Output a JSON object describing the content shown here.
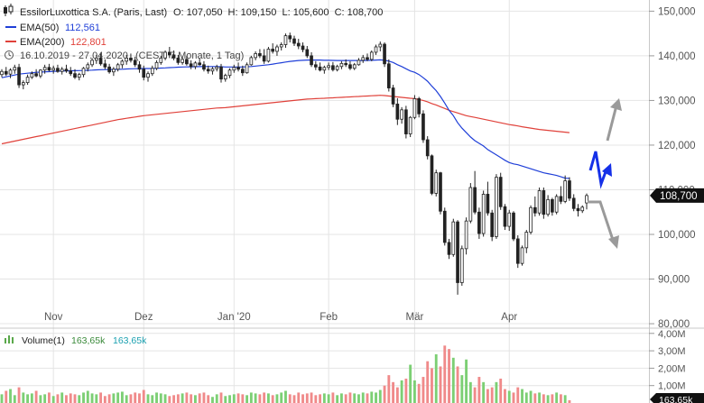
{
  "chart_data": [
    {
      "type": "candlestick",
      "legend": {
        "instrument": "EssilorLuxottica S.A. (Paris, Last)",
        "ohlc": "O: 107,050  H: 109,150  L: 105,600  C: 108,700",
        "ema50_label": "EMA(50)",
        "ema50_value": "112,561",
        "ema200_label": "EMA(200)",
        "ema200_value": "122,801",
        "period": "16.10.2019 - 27.04.2020",
        "period_detail": "(CEST, 7 Monate, 1 Tag)"
      },
      "x_ticks": [
        {
          "label": "Nov",
          "index": 12
        },
        {
          "label": "Dez",
          "index": 33
        },
        {
          "label": "Jan '20",
          "index": 54
        },
        {
          "label": "Feb",
          "index": 76
        },
        {
          "label": "Mär",
          "index": 96
        },
        {
          "label": "Apr",
          "index": 118
        }
      ],
      "y_ticks": [
        "150,000",
        "140,000",
        "130,000",
        "120,000",
        "110,000",
        "100,000",
        "90,000",
        "80,000"
      ],
      "y_tick_values": [
        150,
        140,
        130,
        120,
        110,
        100,
        90,
        80
      ],
      "ylim": [
        79,
        152.5
      ],
      "last_price_label": "108,700",
      "last_price": 108.7,
      "colors": {
        "up": "#222222",
        "down": "#222222",
        "ema50": "#1f3fd8",
        "ema200": "#e0413a",
        "arrow_grey": "#999999",
        "arrow_blue": "#1530e8",
        "grid": "#e4e4e4"
      },
      "candles": [
        [
          135.8,
          137.0,
          135.2,
          136.5
        ],
        [
          136.5,
          137.5,
          135.5,
          135.9
        ],
        [
          135.9,
          137.2,
          135.0,
          136.8
        ],
        [
          136.8,
          138.0,
          136.0,
          137.4
        ],
        [
          137.4,
          138.2,
          132.8,
          133.5
        ],
        [
          133.5,
          134.5,
          132.5,
          134.0
        ],
        [
          134.0,
          135.8,
          133.5,
          135.2
        ],
        [
          135.2,
          136.5,
          134.8,
          136.0
        ],
        [
          136.0,
          137.0,
          135.2,
          135.5
        ],
        [
          135.5,
          137.0,
          135.0,
          136.8
        ],
        [
          136.8,
          138.0,
          136.0,
          137.4
        ],
        [
          137.4,
          138.2,
          136.5,
          136.8
        ],
        [
          136.8,
          137.8,
          136.0,
          137.2
        ],
        [
          137.2,
          138.0,
          136.2,
          136.5
        ],
        [
          136.5,
          137.5,
          135.8,
          137.0
        ],
        [
          137.0,
          138.0,
          136.2,
          136.6
        ],
        [
          136.6,
          137.5,
          135.5,
          136.0
        ],
        [
          136.0,
          137.0,
          134.8,
          135.2
        ],
        [
          135.2,
          136.2,
          134.5,
          135.8
        ],
        [
          135.8,
          137.5,
          135.2,
          137.2
        ],
        [
          137.2,
          138.5,
          136.5,
          138.0
        ],
        [
          138.0,
          139.5,
          137.5,
          139.0
        ],
        [
          139.0,
          140.2,
          138.2,
          139.5
        ],
        [
          139.5,
          140.5,
          137.8,
          138.2
        ],
        [
          138.2,
          139.2,
          137.0,
          137.5
        ],
        [
          137.5,
          138.2,
          136.0,
          136.4
        ],
        [
          136.4,
          137.5,
          135.5,
          137.0
        ],
        [
          137.0,
          138.4,
          136.5,
          138.0
        ],
        [
          138.0,
          139.2,
          137.2,
          138.8
        ],
        [
          138.8,
          140.2,
          138.0,
          139.5
        ],
        [
          139.5,
          140.5,
          138.5,
          139.0
        ],
        [
          139.0,
          139.8,
          137.5,
          138.0
        ],
        [
          138.0,
          138.8,
          136.2,
          137.0
        ],
        [
          137.0,
          137.8,
          134.5,
          135.2
        ],
        [
          135.2,
          136.5,
          134.2,
          136.0
        ],
        [
          136.0,
          137.8,
          135.5,
          137.2
        ],
        [
          137.2,
          139.0,
          136.8,
          138.5
        ],
        [
          138.5,
          140.0,
          138.0,
          139.5
        ],
        [
          139.5,
          141.2,
          139.0,
          140.8
        ],
        [
          140.8,
          142.0,
          139.5,
          140.2
        ],
        [
          140.2,
          141.2,
          139.0,
          139.5
        ],
        [
          139.5,
          140.2,
          138.0,
          138.5
        ],
        [
          138.5,
          139.8,
          138.0,
          139.2
        ],
        [
          139.2,
          140.0,
          137.8,
          138.2
        ],
        [
          138.2,
          139.0,
          137.0,
          137.6
        ],
        [
          137.6,
          138.8,
          137.0,
          138.4
        ],
        [
          138.4,
          139.5,
          137.8,
          138.0
        ],
        [
          138.0,
          138.8,
          136.5,
          137.0
        ],
        [
          137.0,
          137.8,
          136.0,
          136.6
        ],
        [
          136.6,
          137.5,
          135.8,
          137.1
        ],
        [
          137.1,
          138.0,
          136.5,
          137.5
        ],
        [
          137.5,
          138.2,
          134.0,
          134.8
        ],
        [
          134.8,
          136.0,
          134.2,
          135.6
        ],
        [
          135.6,
          137.2,
          135.0,
          136.8
        ],
        [
          136.8,
          138.0,
          136.2,
          137.4
        ],
        [
          137.4,
          138.5,
          136.5,
          137.0
        ],
        [
          137.0,
          137.8,
          135.5,
          136.2
        ],
        [
          136.2,
          138.5,
          136.0,
          138.0
        ],
        [
          138.0,
          140.0,
          137.8,
          139.6
        ],
        [
          139.6,
          141.0,
          139.0,
          140.5
        ],
        [
          140.5,
          141.5,
          139.5,
          140.0
        ],
        [
          140.0,
          141.5,
          138.2,
          138.8
        ],
        [
          138.8,
          142.0,
          138.5,
          141.5
        ],
        [
          141.5,
          142.8,
          140.5,
          141.0
        ],
        [
          141.0,
          142.5,
          140.0,
          142.0
        ],
        [
          142.0,
          143.0,
          141.2,
          142.5
        ],
        [
          142.5,
          145.0,
          141.8,
          144.5
        ],
        [
          144.5,
          145.2,
          143.0,
          143.8
        ],
        [
          143.8,
          144.5,
          142.2,
          142.8
        ],
        [
          142.8,
          143.8,
          141.5,
          142.2
        ],
        [
          142.2,
          143.0,
          140.8,
          141.4
        ],
        [
          141.4,
          142.2,
          139.5,
          140.0
        ],
        [
          140.0,
          140.8,
          137.5,
          138.0
        ],
        [
          138.0,
          138.8,
          136.8,
          137.5
        ],
        [
          137.5,
          138.5,
          136.5,
          136.8
        ],
        [
          136.8,
          137.8,
          136.0,
          137.4
        ],
        [
          137.4,
          138.5,
          136.8,
          137.8
        ],
        [
          137.8,
          138.6,
          136.5,
          136.9
        ],
        [
          136.9,
          138.0,
          136.5,
          137.6
        ],
        [
          137.6,
          138.8,
          137.0,
          138.3
        ],
        [
          138.3,
          139.2,
          137.5,
          138.0
        ],
        [
          138.0,
          138.8,
          136.8,
          137.2
        ],
        [
          137.2,
          138.4,
          136.8,
          138.0
        ],
        [
          138.0,
          139.5,
          137.8,
          139.0
        ],
        [
          139.0,
          140.2,
          138.4,
          139.6
        ],
        [
          139.6,
          140.5,
          138.8,
          139.2
        ],
        [
          139.2,
          141.2,
          138.8,
          140.8
        ],
        [
          140.8,
          142.5,
          140.2,
          142.0
        ],
        [
          142.0,
          143.2,
          141.0,
          142.6
        ],
        [
          142.6,
          143.0,
          137.5,
          138.2
        ],
        [
          138.2,
          139.2,
          132.0,
          132.8
        ],
        [
          132.8,
          133.5,
          128.5,
          129.2
        ],
        [
          129.2,
          130.5,
          124.5,
          125.8
        ],
        [
          125.8,
          128.5,
          124.8,
          127.9
        ],
        [
          127.9,
          128.8,
          121.5,
          122.5
        ],
        [
          122.5,
          126.5,
          121.8,
          126.2
        ],
        [
          126.2,
          131.2,
          125.8,
          130.4
        ],
        [
          130.4,
          130.8,
          126.2,
          127.0
        ],
        [
          127.0,
          127.8,
          120.5,
          121.2
        ],
        [
          121.2,
          122.0,
          116.8,
          117.6
        ],
        [
          117.6,
          117.9,
          108.8,
          109.2
        ],
        [
          109.2,
          114.5,
          108.5,
          113.8
        ],
        [
          113.8,
          114.0,
          104.5,
          105.2
        ],
        [
          105.2,
          106.0,
          97.5,
          98.2
        ],
        [
          98.2,
          99.0,
          94.5,
          95.5
        ],
        [
          95.5,
          103.5,
          95.0,
          102.8
        ],
        [
          102.8,
          103.2,
          86.5,
          89.2
        ],
        [
          89.2,
          97.5,
          88.5,
          96.8
        ],
        [
          96.8,
          103.8,
          95.5,
          103.0
        ],
        [
          103.0,
          111.5,
          102.5,
          110.5
        ],
        [
          110.5,
          114.2,
          104.5,
          105.0
        ],
        [
          105.0,
          106.0,
          99.0,
          100.2
        ],
        [
          100.2,
          109.8,
          99.5,
          109.0
        ],
        [
          109.0,
          111.8,
          104.2,
          104.8
        ],
        [
          104.8,
          105.5,
          98.5,
          99.5
        ],
        [
          99.5,
          113.5,
          99.0,
          112.8
        ],
        [
          112.8,
          113.8,
          105.5,
          106.2
        ],
        [
          106.2,
          106.8,
          101.0,
          101.8
        ],
        [
          101.8,
          105.5,
          100.8,
          104.8
        ],
        [
          104.8,
          105.2,
          98.5,
          99.0
        ],
        [
          99.0,
          99.8,
          92.5,
          93.5
        ],
        [
          93.5,
          97.5,
          93.0,
          97.0
        ],
        [
          97.0,
          101.0,
          95.8,
          100.5
        ],
        [
          100.5,
          106.5,
          100.0,
          106.0
        ],
        [
          106.0,
          108.5,
          104.0,
          104.8
        ],
        [
          104.8,
          110.5,
          104.2,
          109.8
        ],
        [
          109.8,
          110.5,
          103.5,
          104.5
        ],
        [
          104.5,
          108.8,
          104.0,
          107.8
        ],
        [
          107.8,
          108.2,
          104.2,
          105.0
        ],
        [
          105.0,
          109.0,
          104.5,
          108.5
        ],
        [
          108.5,
          110.8,
          106.8,
          107.4
        ],
        [
          107.4,
          113.2,
          107.0,
          112.0
        ],
        [
          112.0,
          112.8,
          107.5,
          108.1
        ],
        [
          108.1,
          109.0,
          105.2,
          105.8
        ],
        [
          105.8,
          106.8,
          104.0,
          105.3
        ],
        [
          105.3,
          106.5,
          104.8,
          106.1
        ],
        [
          107.05,
          109.15,
          105.6,
          108.7
        ]
      ],
      "ema50": [
        135.1,
        135.3,
        135.5,
        135.7,
        135.9,
        136.0,
        136.1,
        136.2,
        136.3,
        136.35,
        136.4,
        136.45,
        136.5,
        136.55,
        136.6,
        136.62,
        136.64,
        136.66,
        136.68,
        136.7,
        136.75,
        136.8,
        136.85,
        136.9,
        136.92,
        136.94,
        136.96,
        136.98,
        137.0,
        137.05,
        137.1,
        137.12,
        137.14,
        137.15,
        137.15,
        137.16,
        137.2,
        137.25,
        137.3,
        137.35,
        137.4,
        137.45,
        137.5,
        137.52,
        137.54,
        137.56,
        137.58,
        137.6,
        137.6,
        137.6,
        137.6,
        137.55,
        137.5,
        137.5,
        137.5,
        137.5,
        137.5,
        137.55,
        137.6,
        137.7,
        137.8,
        137.9,
        138.0,
        138.15,
        138.3,
        138.45,
        138.6,
        138.75,
        138.85,
        138.95,
        139.0,
        139.05,
        139.05,
        139.05,
        139.05,
        139.0,
        139.0,
        138.98,
        138.96,
        138.96,
        138.96,
        138.96,
        138.96,
        138.96,
        138.96,
        138.98,
        139.0,
        139.05,
        139.1,
        139.0,
        138.8,
        138.5,
        138.0,
        137.6,
        137.1,
        136.6,
        136.3,
        135.8,
        135.1,
        134.3,
        133.2,
        132.2,
        130.9,
        129.4,
        127.8,
        126.6,
        125.0,
        123.8,
        122.8,
        121.8,
        121.0,
        120.4,
        119.8,
        119.0,
        118.4,
        117.8,
        117.2,
        116.6,
        116.1,
        115.8,
        115.6,
        115.3,
        115.0,
        114.7,
        114.4,
        114.1,
        113.8,
        113.6,
        113.4,
        113.2,
        112.9,
        112.6,
        112.561
      ],
      "ema200": [
        120.3,
        120.5,
        120.7,
        120.9,
        121.1,
        121.3,
        121.5,
        121.7,
        121.9,
        122.1,
        122.3,
        122.5,
        122.7,
        122.9,
        123.1,
        123.3,
        123.5,
        123.7,
        123.9,
        124.1,
        124.3,
        124.5,
        124.7,
        124.9,
        125.1,
        125.3,
        125.5,
        125.7,
        125.85,
        126.0,
        126.15,
        126.3,
        126.45,
        126.6,
        126.7,
        126.8,
        126.9,
        127.0,
        127.1,
        127.2,
        127.3,
        127.4,
        127.5,
        127.6,
        127.7,
        127.8,
        127.9,
        128.0,
        128.1,
        128.2,
        128.3,
        128.35,
        128.4,
        128.5,
        128.6,
        128.7,
        128.8,
        128.9,
        129.0,
        129.1,
        129.2,
        129.3,
        129.4,
        129.5,
        129.6,
        129.7,
        129.8,
        129.9,
        130.0,
        130.1,
        130.2,
        130.3,
        130.35,
        130.4,
        130.45,
        130.5,
        130.55,
        130.6,
        130.65,
        130.7,
        130.75,
        130.8,
        130.85,
        130.9,
        130.95,
        131.0,
        131.05,
        131.1,
        131.15,
        131.1,
        131.0,
        130.9,
        130.8,
        130.7,
        130.6,
        130.5,
        130.4,
        130.2,
        130.0,
        129.7,
        129.3,
        129.0,
        128.6,
        128.2,
        127.8,
        127.5,
        127.2,
        126.9,
        126.6,
        126.4,
        126.2,
        126.0,
        125.8,
        125.6,
        125.4,
        125.2,
        125.0,
        124.8,
        124.6,
        124.45,
        124.3,
        124.1,
        123.95,
        123.8,
        123.65,
        123.5,
        123.4,
        123.3,
        123.2,
        123.1,
        123.0,
        122.9,
        122.801
      ]
    },
    {
      "type": "bar",
      "title": "Volume(1)",
      "legend_value_1": "163,65k",
      "legend_value_2": "163,65k",
      "y_ticks": [
        "4,00M",
        "3,00M",
        "2,00M",
        "1,00M"
      ],
      "y_tick_values": [
        4,
        3,
        2,
        1
      ],
      "ylim": [
        0,
        4.3
      ],
      "last_label": "163,65k",
      "unit": "M",
      "values": [
        0.5,
        0.7,
        0.8,
        0.45,
        0.9,
        0.6,
        0.5,
        0.55,
        0.7,
        0.45,
        0.5,
        0.6,
        0.4,
        0.5,
        0.6,
        0.45,
        0.55,
        0.5,
        0.45,
        0.6,
        0.7,
        0.55,
        0.5,
        0.6,
        0.4,
        0.5,
        0.55,
        0.6,
        0.65,
        0.45,
        0.5,
        0.6,
        0.55,
        0.75,
        0.5,
        0.45,
        0.6,
        0.55,
        0.5,
        0.4,
        0.45,
        0.5,
        0.55,
        0.6,
        0.5,
        0.45,
        0.55,
        0.6,
        0.45,
        0.35,
        0.5,
        0.6,
        0.4,
        0.45,
        0.5,
        0.55,
        0.5,
        0.45,
        0.6,
        0.55,
        0.5,
        0.6,
        0.55,
        0.45,
        0.5,
        0.6,
        0.7,
        0.5,
        0.45,
        0.6,
        0.5,
        0.55,
        0.6,
        0.45,
        0.5,
        0.55,
        0.5,
        0.6,
        0.45,
        0.55,
        0.5,
        0.6,
        0.55,
        0.5,
        0.6,
        0.55,
        0.65,
        0.6,
        0.75,
        1.0,
        1.6,
        1.2,
        0.9,
        1.3,
        1.4,
        2.2,
        1.3,
        1.1,
        1.5,
        2.4,
        2.0,
        2.8,
        2.1,
        3.3,
        3.1,
        2.6,
        2.1,
        1.6,
        2.5,
        1.2,
        0.9,
        1.5,
        1.2,
        0.8,
        0.9,
        1.2,
        1.4,
        0.8,
        0.7,
        0.6,
        0.9,
        0.8,
        0.6,
        0.7,
        0.55,
        0.6,
        0.5,
        0.45,
        0.5,
        0.6,
        0.5,
        0.45,
        0.16
      ]
    }
  ]
}
